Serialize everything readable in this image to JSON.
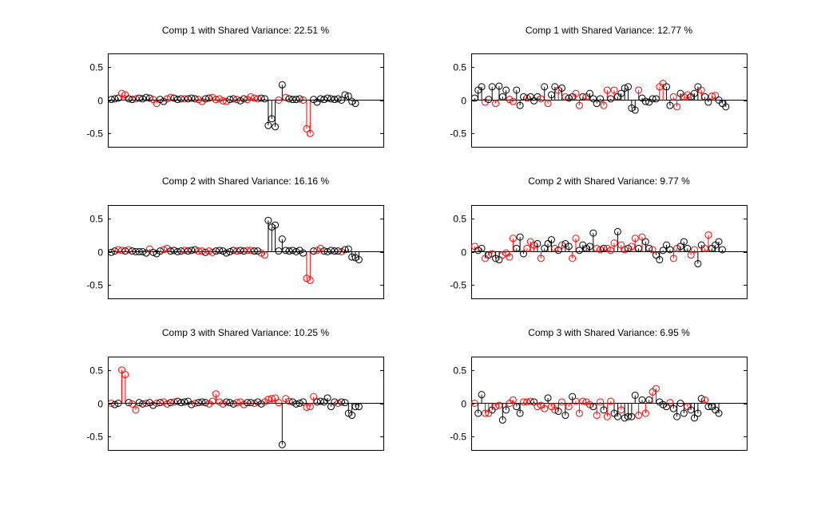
{
  "figure": {
    "background": "#ffffff",
    "colors": {
      "black": "#000000",
      "red": "#ff0000"
    }
  },
  "chart_data": [
    {
      "type": "stem",
      "title": "Comp 1 with Shared Variance: 22.51 %",
      "xlim": [
        1,
        80
      ],
      "ylim": [
        -0.7,
        0.7
      ],
      "yticks": [
        0.5,
        0,
        -0.5
      ],
      "ytick_labels": [
        "0.5",
        "0",
        "-0.5"
      ],
      "grid": false,
      "values": [
        0.01,
        0.02,
        0.03,
        0.1,
        0.08,
        0.02,
        0.01,
        0.02,
        0.03,
        0.02,
        0.04,
        0.03,
        0.01,
        -0.05,
        0.01,
        -0.02,
        0.02,
        0.04,
        0.03,
        0.01,
        0.02,
        0.02,
        0.02,
        0.03,
        0.02,
        0.01,
        -0.02,
        0.02,
        0.03,
        0.04,
        0.01,
        0.02,
        -0.01,
        -0.02,
        0.01,
        0.02,
        0.01,
        -0.01,
        0.02,
        0.01,
        0.05,
        0.03,
        0.02,
        0.03,
        0.02,
        -0.38,
        -0.28,
        -0.4,
        0,
        0.23,
        0.04,
        0.02,
        0.01,
        0.01,
        0.02,
        0,
        -0.43,
        -0.5,
        0.01,
        -0.03,
        0.02,
        0.01,
        0.03,
        0.02,
        0.01,
        0.02,
        0,
        0.08,
        0.06,
        -0.02,
        -0.05
      ],
      "colors": [
        "black",
        "black",
        "black",
        "red",
        "red",
        "black",
        "black",
        "red",
        "black",
        "black",
        "black",
        "black",
        "red",
        "red",
        "black",
        "black",
        "red",
        "red",
        "black",
        "black",
        "black",
        "red",
        "black",
        "black",
        "black",
        "red",
        "red",
        "black",
        "black",
        "red",
        "red",
        "red",
        "red",
        "red",
        "black",
        "black",
        "red",
        "black",
        "black",
        "red",
        "red",
        "red",
        "red",
        "black",
        "black",
        "black",
        "black",
        "black",
        "red",
        "black",
        "red",
        "black",
        "black",
        "black",
        "black",
        "red",
        "red",
        "red",
        "black",
        "black",
        "black",
        "black",
        "black",
        "black",
        "black",
        "black",
        "black",
        "black",
        "black",
        "black",
        "black"
      ]
    },
    {
      "type": "stem",
      "title": "Comp 1 with Shared Variance: 12.77 %",
      "xlim": [
        1,
        80
      ],
      "ylim": [
        -0.7,
        0.7
      ],
      "yticks": [
        0.5,
        0,
        -0.5
      ],
      "ytick_labels": [
        "0.5",
        "0",
        "-0.5"
      ],
      "grid": false,
      "values": [
        0.03,
        0.15,
        0.2,
        -0.03,
        0.01,
        0.2,
        -0.05,
        0.21,
        0.05,
        0.15,
        0.01,
        -0.02,
        0.15,
        -0.08,
        0.05,
        0.03,
        0.05,
        -0.01,
        0.05,
        0.02,
        0.2,
        -0.05,
        0.08,
        0.2,
        0.15,
        0.18,
        0.05,
        0.03,
        0.05,
        0.1,
        -0.08,
        0.05,
        0.05,
        0.1,
        0.02,
        -0.05,
        0.02,
        -0.08,
        0.15,
        0.02,
        0.15,
        0.05,
        0.1,
        0.18,
        0.2,
        -0.12,
        -0.15,
        0.15,
        0.03,
        -0.02,
        -0.03,
        0.02,
        0.02,
        0.2,
        0.25,
        0.2,
        -0.08,
        0.05,
        -0.1,
        0.1,
        0.05,
        0.08,
        0.05,
        0.1,
        0.2,
        0.15,
        0.05,
        -0.03,
        0.06,
        0.07,
        0,
        -0.05,
        -0.1
      ],
      "colors": [
        "black",
        "black",
        "black",
        "red",
        "black",
        "black",
        "red",
        "black",
        "black",
        "black",
        "red",
        "red",
        "black",
        "black",
        "black",
        "red",
        "black",
        "black",
        "black",
        "red",
        "black",
        "red",
        "black",
        "black",
        "red",
        "black",
        "red",
        "black",
        "black",
        "red",
        "red",
        "black",
        "red",
        "black",
        "black",
        "black",
        "black",
        "red",
        "red",
        "black",
        "red",
        "black",
        "black",
        "black",
        "black",
        "black",
        "black",
        "red",
        "black",
        "black",
        "black",
        "black",
        "black",
        "red",
        "red",
        "black",
        "black",
        "red",
        "red",
        "black",
        "red",
        "red",
        "black",
        "black",
        "black",
        "red",
        "black",
        "black",
        "red",
        "red",
        "black",
        "black",
        "black"
      ]
    },
    {
      "type": "stem",
      "title": "Comp 2 with Shared Variance: 16.16 %",
      "xlim": [
        1,
        80
      ],
      "ylim": [
        -0.7,
        0.7
      ],
      "yticks": [
        0.5,
        0,
        -0.5
      ],
      "ytick_labels": [
        "0.5",
        "0",
        "-0.5"
      ],
      "grid": false,
      "values": [
        -0.01,
        0.01,
        0.03,
        0.02,
        0.01,
        0.03,
        0.01,
        0,
        0,
        0,
        -0.02,
        0.04,
        -0.01,
        -0.03,
        0.01,
        0.03,
        0.05,
        0.01,
        0.02,
        0,
        0.01,
        0.02,
        0.01,
        0.02,
        0.03,
        0.01,
        0.01,
        -0.01,
        0.01,
        -0.01,
        0.01,
        0.02,
        0.01,
        -0.02,
        0,
        0.02,
        0.01,
        0.02,
        0.01,
        0.02,
        0.02,
        0.01,
        0.01,
        -0.02,
        -0.05,
        0.47,
        0.37,
        0.4,
        0.01,
        0.19,
        0.02,
        0.01,
        0.02,
        0,
        0.02,
        -0.02,
        -0.4,
        -0.43,
        0.01,
        0.02,
        0.05,
        0.01,
        0,
        0.02,
        0.01,
        0.01,
        0,
        0.03,
        0.04,
        -0.08,
        -0.09,
        -0.12
      ],
      "colors": [
        "black",
        "black",
        "red",
        "red",
        "black",
        "red",
        "black",
        "black",
        "black",
        "black",
        "black",
        "red",
        "black",
        "black",
        "black",
        "red",
        "red",
        "black",
        "black",
        "black",
        "black",
        "red",
        "black",
        "black",
        "black",
        "red",
        "red",
        "black",
        "red",
        "red",
        "black",
        "black",
        "black",
        "black",
        "black",
        "black",
        "red",
        "black",
        "black",
        "red",
        "red",
        "black",
        "black",
        "red",
        "red",
        "black",
        "black",
        "black",
        "black",
        "black",
        "black",
        "black",
        "black",
        "black",
        "black",
        "black",
        "red",
        "red",
        "black",
        "red",
        "red",
        "black",
        "black",
        "black",
        "black",
        "black",
        "red",
        "black",
        "black",
        "black",
        "black",
        "black"
      ]
    },
    {
      "type": "stem",
      "title": "Comp 2 with Shared Variance: 9.77 %",
      "xlim": [
        1,
        80
      ],
      "ylim": [
        -0.7,
        0.7
      ],
      "yticks": [
        0.5,
        0,
        -0.5
      ],
      "ytick_labels": [
        "0.5",
        "0",
        "-0.5"
      ],
      "grid": false,
      "values": [
        0.08,
        0.02,
        0.05,
        -0.1,
        -0.05,
        -0.03,
        -0.1,
        -0.12,
        -0.05,
        -0.02,
        -0.08,
        0.2,
        0.05,
        0.22,
        -0.03,
        0.05,
        0.15,
        0.1,
        0.12,
        -0.1,
        0.05,
        0.12,
        0.18,
        0.05,
        0.02,
        0.1,
        0.12,
        0.08,
        -0.1,
        0.2,
        0.02,
        0.1,
        0.05,
        0.08,
        0.28,
        0.05,
        0.03,
        0.05,
        0.05,
        0.02,
        0.13,
        0.3,
        0.1,
        0.03,
        0.05,
        0.08,
        0.2,
        0.05,
        0.22,
        0.15,
        0.05,
        0.03,
        -0.05,
        -0.12,
        0.02,
        0.1,
        0.03,
        -0.1,
        0.05,
        0.08,
        0.15,
        0.05,
        -0.05,
        0.03,
        -0.18,
        0.1,
        0.05,
        0.25,
        0.05,
        0.1,
        0.15,
        0.03
      ],
      "colors": [
        "red",
        "black",
        "black",
        "red",
        "black",
        "red",
        "black",
        "black",
        "red",
        "red",
        "red",
        "red",
        "black",
        "black",
        "black",
        "red",
        "red",
        "red",
        "black",
        "red",
        "black",
        "black",
        "black",
        "red",
        "black",
        "red",
        "black",
        "black",
        "red",
        "red",
        "black",
        "black",
        "black",
        "black",
        "black",
        "red",
        "red",
        "black",
        "red",
        "red",
        "red",
        "black",
        "red",
        "red",
        "black",
        "red",
        "red",
        "black",
        "red",
        "black",
        "black",
        "red",
        "black",
        "black",
        "black",
        "black",
        "black",
        "red",
        "red",
        "black",
        "black",
        "black",
        "red",
        "red",
        "black",
        "black",
        "red",
        "red",
        "black",
        "black",
        "black",
        "black"
      ]
    },
    {
      "type": "stem",
      "title": "Comp 3 with Shared Variance: 10.25 %",
      "xlim": [
        1,
        80
      ],
      "ylim": [
        -0.7,
        0.7
      ],
      "yticks": [
        0.5,
        0,
        -0.5
      ],
      "ytick_labels": [
        "0.5",
        "0",
        "-0.5"
      ],
      "grid": false,
      "values": [
        0,
        -0.02,
        0,
        0.5,
        0.43,
        0.01,
        -0.01,
        -0.1,
        0.01,
        -0.01,
        0,
        0.01,
        -0.03,
        0,
        0.01,
        0.02,
        -0.01,
        0.01,
        0.02,
        0.03,
        0.01,
        0.02,
        0.03,
        -0.02,
        0,
        0.01,
        0.02,
        0.01,
        -0.01,
        0.03,
        0.14,
        0.02,
        -0.01,
        0.02,
        0.01,
        -0.01,
        0.01,
        0.02,
        -0.02,
        0.01,
        0.01,
        0,
        0.02,
        -0.01,
        0.02,
        0.06,
        0.07,
        0.08,
        0.01,
        -0.62,
        0.07,
        0.03,
        0.02,
        -0.01,
        0,
        0.02,
        -0.06,
        -0.05,
        0.1,
        0.02,
        0.03,
        0.02,
        0.08,
        -0.05,
        0.02,
        0,
        0.02,
        0.01,
        -0.15,
        -0.18,
        -0.05,
        -0.05
      ],
      "colors": [
        "red",
        "black",
        "black",
        "red",
        "red",
        "black",
        "red",
        "red",
        "black",
        "black",
        "red",
        "black",
        "black",
        "red",
        "black",
        "red",
        "red",
        "black",
        "red",
        "black",
        "black",
        "black",
        "black",
        "black",
        "red",
        "black",
        "black",
        "black",
        "red",
        "red",
        "red",
        "red",
        "red",
        "black",
        "black",
        "black",
        "red",
        "red",
        "red",
        "black",
        "black",
        "red",
        "black",
        "black",
        "red",
        "red",
        "red",
        "red",
        "red",
        "black",
        "red",
        "red",
        "black",
        "black",
        "black",
        "black",
        "red",
        "red",
        "red",
        "black",
        "black",
        "black",
        "black",
        "black",
        "black",
        "red",
        "black",
        "black",
        "black",
        "black",
        "black",
        "black"
      ]
    },
    {
      "type": "stem",
      "title": "Comp 3 with Shared Variance: 6.95 %",
      "xlim": [
        1,
        80
      ],
      "ylim": [
        -0.7,
        0.7
      ],
      "yticks": [
        0.5,
        0,
        -0.5
      ],
      "ytick_labels": [
        "0.5",
        "0",
        "-0.5"
      ],
      "grid": false,
      "values": [
        0,
        -0.15,
        0.13,
        -0.15,
        -0.15,
        -0.1,
        -0.05,
        -0.03,
        -0.25,
        -0.1,
        0,
        0.05,
        -0.05,
        -0.15,
        0.02,
        0.02,
        0.03,
        0.02,
        -0.05,
        -0.03,
        -0.08,
        0.08,
        -0.05,
        -0.1,
        -0.12,
        0.02,
        -0.18,
        -0.05,
        0.1,
        0.03,
        -0.15,
        0.03,
        0.02,
        -0.02,
        -0.05,
        -0.18,
        0.02,
        -0.1,
        -0.2,
        0.03,
        -0.15,
        -0.2,
        -0.1,
        -0.22,
        -0.2,
        -0.2,
        0.12,
        -0.18,
        0.05,
        -0.15,
        0.05,
        0.17,
        0.22,
        0.02,
        -0.02,
        -0.05,
        0.01,
        -0.08,
        -0.2,
        0,
        -0.15,
        -0.05,
        -0.1,
        -0.22,
        -0.15,
        0.07,
        0.05,
        -0.05,
        -0.05,
        -0.1,
        -0.15
      ],
      "colors": [
        "red",
        "black",
        "black",
        "red",
        "red",
        "black",
        "red",
        "red",
        "black",
        "black",
        "red",
        "red",
        "black",
        "black",
        "red",
        "red",
        "red",
        "black",
        "red",
        "red",
        "red",
        "black",
        "red",
        "red",
        "black",
        "red",
        "black",
        "red",
        "black",
        "red",
        "red",
        "red",
        "red",
        "red",
        "black",
        "red",
        "red",
        "black",
        "red",
        "red",
        "black",
        "black",
        "red",
        "black",
        "black",
        "black",
        "black",
        "red",
        "black",
        "red",
        "black",
        "red",
        "red",
        "black",
        "black",
        "black",
        "red",
        "black",
        "black",
        "black",
        "black",
        "red",
        "black",
        "black",
        "black",
        "black",
        "red",
        "black",
        "black",
        "black",
        "black"
      ]
    }
  ]
}
